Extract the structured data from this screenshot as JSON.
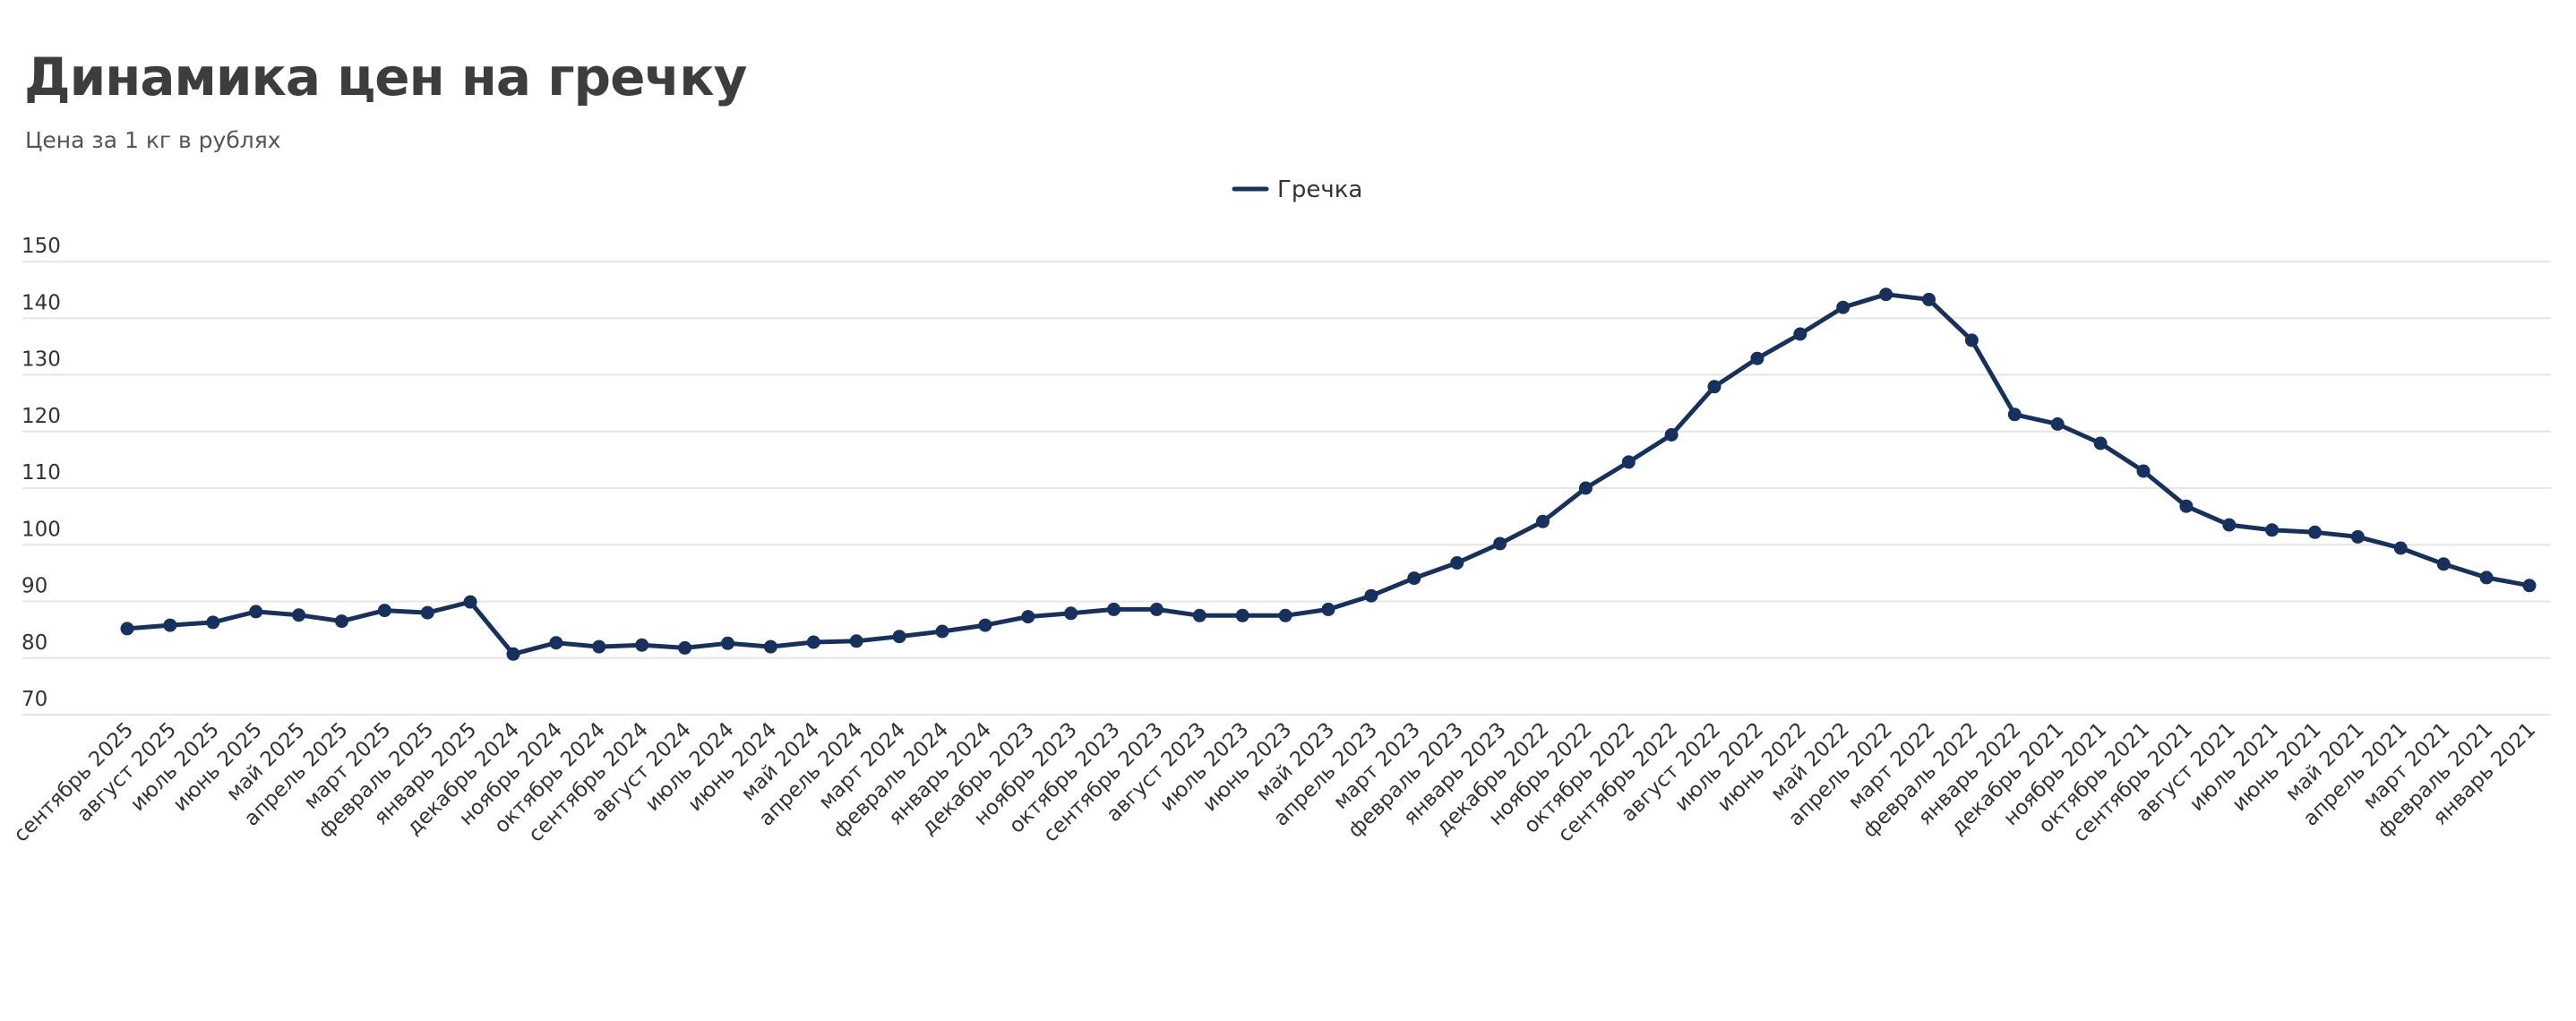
{
  "header": {
    "title": "Динамика цен на гречку",
    "subtitle": "Цена за 1 кг в рублях"
  },
  "colors": {
    "series": "#17315e",
    "grid": "#e6e6e6",
    "text": "#333333"
  },
  "chart_data": {
    "type": "line",
    "title": "Динамика цен на гречку",
    "subtitle": "Цена за 1 кг в рублях",
    "xlabel": "",
    "ylabel": "",
    "ylim": [
      70,
      150
    ],
    "yticks": [
      70,
      80,
      90,
      100,
      110,
      120,
      130,
      140,
      150
    ],
    "grid": true,
    "legend_position": "top-center",
    "categories": [
      "сентябрь 2025",
      "август 2025",
      "июль 2025",
      "июнь 2025",
      "май 2025",
      "апрель 2025",
      "март 2025",
      "февраль 2025",
      "январь 2025",
      "декабрь 2024",
      "ноябрь 2024",
      "октябрь 2024",
      "сентябрь 2024",
      "август 2024",
      "июль 2024",
      "июнь 2024",
      "май 2024",
      "апрель 2024",
      "март 2024",
      "февраль 2024",
      "январь 2024",
      "декабрь 2023",
      "ноябрь 2023",
      "октябрь 2023",
      "сентябрь 2023",
      "август 2023",
      "июль 2023",
      "июнь 2023",
      "май 2023",
      "апрель 2023",
      "март 2023",
      "февраль 2023",
      "январь 2023",
      "декабрь 2022",
      "ноябрь 2022",
      "октябрь 2022",
      "сентябрь 2022",
      "август 2022",
      "июль 2022",
      "июнь 2022",
      "май 2022",
      "апрель 2022",
      "март 2022",
      "февраль 2022",
      "январь 2022",
      "декабрь 2021",
      "ноябрь 2021",
      "октябрь 2021",
      "сентябрь 2021",
      "август 2021",
      "июль 2021",
      "июнь 2021",
      "май 2021",
      "апрель 2021",
      "март 2021",
      "февраль 2021",
      "январь 2021"
    ],
    "series": [
      {
        "name": "Гречка",
        "values": [
          85.2,
          85.8,
          86.3,
          88.2,
          87.6,
          86.5,
          88.4,
          88.0,
          89.9,
          80.7,
          82.7,
          82.0,
          82.3,
          81.8,
          82.6,
          82.0,
          82.8,
          83.0,
          83.8,
          84.7,
          85.8,
          87.3,
          87.9,
          88.6,
          88.6,
          87.5,
          87.5,
          87.5,
          88.6,
          91.0,
          94.1,
          96.8,
          100.2,
          104.1,
          110.0,
          114.6,
          119.4,
          127.9,
          132.9,
          137.2,
          141.9,
          144.2,
          143.3,
          136.1,
          123.0,
          121.3,
          117.9,
          113.0,
          106.8,
          103.5,
          102.6,
          102.2,
          101.4,
          99.4,
          96.6,
          94.2,
          92.8
        ]
      }
    ]
  }
}
